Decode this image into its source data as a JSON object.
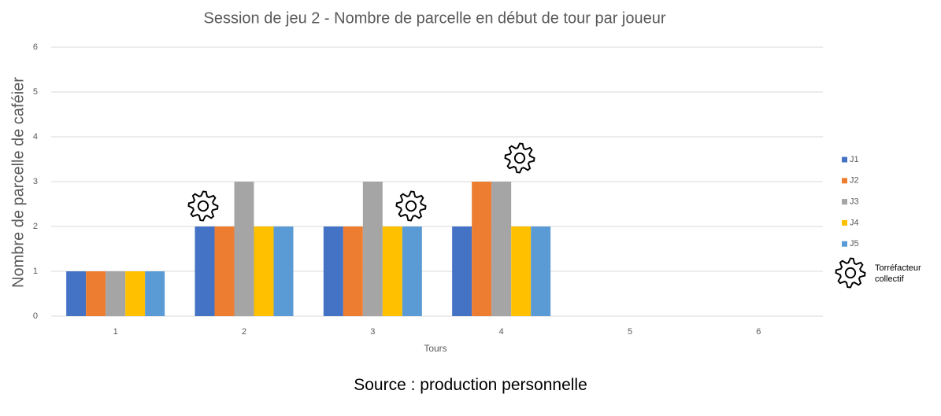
{
  "chart_data": {
    "type": "bar",
    "title": "Session de jeu 2 - Nombre de parcelle en début de tour par joueur",
    "x_label": "Tours",
    "y_label": "Nombre de parcelle de caféier",
    "categories": [
      "1",
      "2",
      "3",
      "4",
      "5",
      "6"
    ],
    "series": [
      {
        "name": "J1",
        "color": "#4472c4",
        "values": [
          1,
          2,
          2,
          2,
          null,
          null
        ]
      },
      {
        "name": "J2",
        "color": "#ed7d31",
        "values": [
          1,
          2,
          2,
          3,
          null,
          null
        ]
      },
      {
        "name": "J3",
        "color": "#a5a5a5",
        "values": [
          1,
          3,
          3,
          3,
          null,
          null
        ]
      },
      {
        "name": "J4",
        "color": "#ffc000",
        "values": [
          1,
          2,
          2,
          2,
          null,
          null
        ]
      },
      {
        "name": "J5",
        "color": "#5b9bd5",
        "values": [
          1,
          2,
          2,
          2,
          null,
          null
        ]
      }
    ],
    "ylim": [
      0,
      6
    ],
    "yticks": [
      0,
      1,
      2,
      3,
      4,
      5,
      6
    ],
    "grid": true,
    "legend": "right",
    "annotation": "Torréfacteur collectif"
  },
  "source": "Source :  production personnelle"
}
